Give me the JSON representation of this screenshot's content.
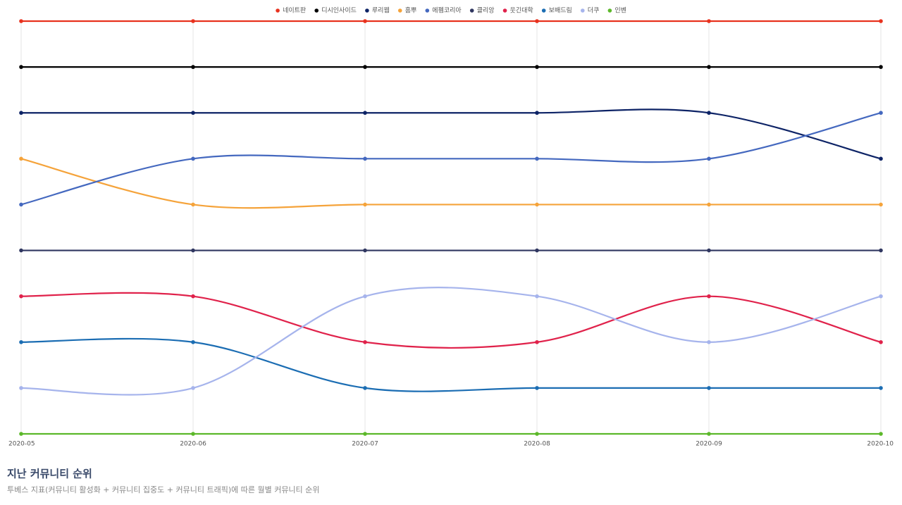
{
  "chart_data": {
    "type": "line",
    "title": "지난 커뮤니티 순위",
    "subtitle": "투베스 지표(커뮤니티 활성화 + 커뮤니티 집중도 + 커뮤니티 트래픽)에 따른 월별 커뮤니티 순위",
    "categories": [
      "2020-05",
      "2020-06",
      "2020-07",
      "2020-08",
      "2020-09",
      "2020-10"
    ],
    "ylim": [
      10,
      1
    ],
    "grid": true,
    "legend": "top",
    "series": [
      {
        "name": "네이트판",
        "color": "#e8321e",
        "values": [
          1,
          1,
          1,
          1,
          1,
          1
        ]
      },
      {
        "name": "디시인사이드",
        "color": "#000000",
        "values": [
          2,
          2,
          2,
          2,
          2,
          2
        ]
      },
      {
        "name": "루리웹",
        "color": "#0d2366",
        "values": [
          3,
          3,
          3,
          3,
          3,
          4
        ]
      },
      {
        "name": "홈뿌",
        "color": "#f5a33a",
        "values": [
          4,
          5,
          5,
          5,
          5,
          5
        ]
      },
      {
        "name": "에펨코리아",
        "color": "#4468bf",
        "values": [
          5,
          4,
          4,
          4,
          4,
          3
        ]
      },
      {
        "name": "클리앙",
        "color": "#2f3660",
        "values": [
          6,
          6,
          6,
          6,
          6,
          6
        ]
      },
      {
        "name": "웃긴대학",
        "color": "#e0224b",
        "values": [
          7,
          7,
          8,
          8,
          7,
          8
        ]
      },
      {
        "name": "보배드림",
        "color": "#1b6db3",
        "values": [
          8,
          8,
          9,
          9,
          9,
          9
        ]
      },
      {
        "name": "더쿠",
        "color": "#a6b4ec",
        "values": [
          9,
          9,
          7,
          7,
          8,
          7
        ]
      },
      {
        "name": "인벤",
        "color": "#5cb82a",
        "values": [
          10,
          10,
          10,
          10,
          10,
          10
        ]
      }
    ]
  }
}
